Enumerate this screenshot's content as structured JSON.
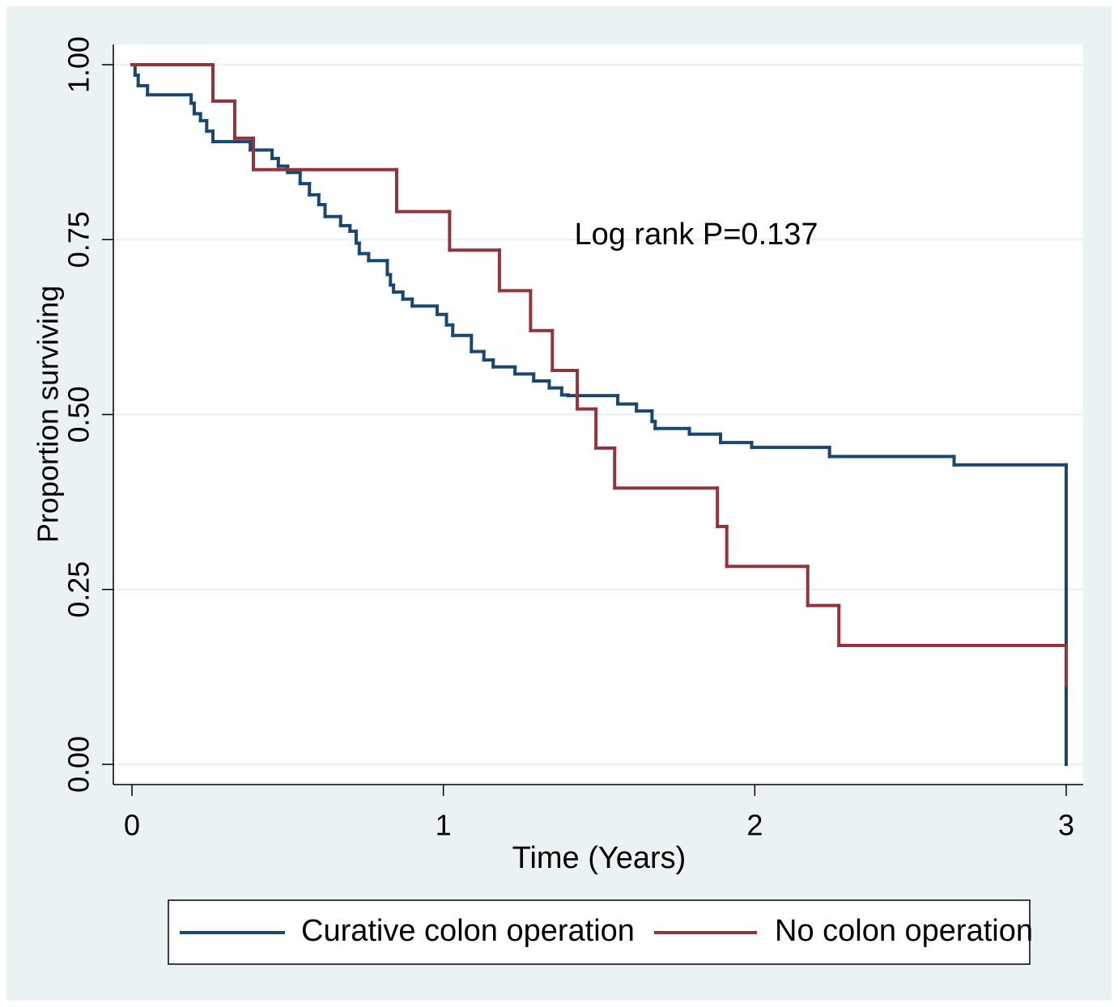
{
  "chart_data": {
    "type": "line",
    "drawstyle": "steps-post",
    "annotation": "Log rank P=0.137",
    "xlabel": "Time (Years)",
    "ylabel": "Proportion surviving",
    "xlim": [
      0,
      3
    ],
    "xticks": [
      0,
      1,
      2,
      3
    ],
    "ylim": [
      0,
      1
    ],
    "yticks": [
      {
        "value": 0,
        "label": "0.00"
      },
      {
        "value": 0.25,
        "label": "0.25"
      },
      {
        "value": 0.5,
        "label": "0.50"
      },
      {
        "value": 0.75,
        "label": "0.75"
      },
      {
        "value": 1,
        "label": "1.00"
      }
    ],
    "grid": true,
    "legend": "bottom",
    "series": [
      {
        "name": "Curative colon operation",
        "color": "#1a476f",
        "x": [
          0,
          0.01,
          0.02,
          0.05,
          0.19,
          0.2,
          0.22,
          0.24,
          0.26,
          0.38,
          0.45,
          0.47,
          0.5,
          0.54,
          0.57,
          0.6,
          0.62,
          0.67,
          0.7,
          0.72,
          0.73,
          0.76,
          0.82,
          0.83,
          0.84,
          0.87,
          0.9,
          0.98,
          1.01,
          1.03,
          1.09,
          1.13,
          1.16,
          1.23,
          1.29,
          1.34,
          1.38,
          1.4,
          1.56,
          1.62,
          1.67,
          1.68,
          1.79,
          1.89,
          1.99,
          2.24,
          2.64,
          3.0
        ],
        "values": [
          1.0,
          0.985,
          0.97,
          0.957,
          0.945,
          0.93,
          0.92,
          0.905,
          0.89,
          0.878,
          0.866,
          0.855,
          0.846,
          0.83,
          0.814,
          0.8,
          0.783,
          0.77,
          0.762,
          0.745,
          0.73,
          0.72,
          0.7,
          0.685,
          0.675,
          0.665,
          0.655,
          0.643,
          0.628,
          0.613,
          0.59,
          0.578,
          0.568,
          0.558,
          0.548,
          0.538,
          0.528,
          0.527,
          0.515,
          0.505,
          0.49,
          0.48,
          0.472,
          0.46,
          0.453,
          0.44,
          0.428,
          0.0
        ]
      },
      {
        "name": "No colon operation",
        "color": "#90353b",
        "x": [
          0,
          0.26,
          0.33,
          0.39,
          0.85,
          1.02,
          1.18,
          1.28,
          1.35,
          1.43,
          1.49,
          1.55,
          1.88,
          1.91,
          2.17,
          2.27,
          3.0
        ],
        "values": [
          1.0,
          0.948,
          0.895,
          0.85,
          0.79,
          0.735,
          0.677,
          0.62,
          0.563,
          0.508,
          0.452,
          0.395,
          0.34,
          0.283,
          0.227,
          0.17,
          0.113
        ]
      }
    ]
  }
}
